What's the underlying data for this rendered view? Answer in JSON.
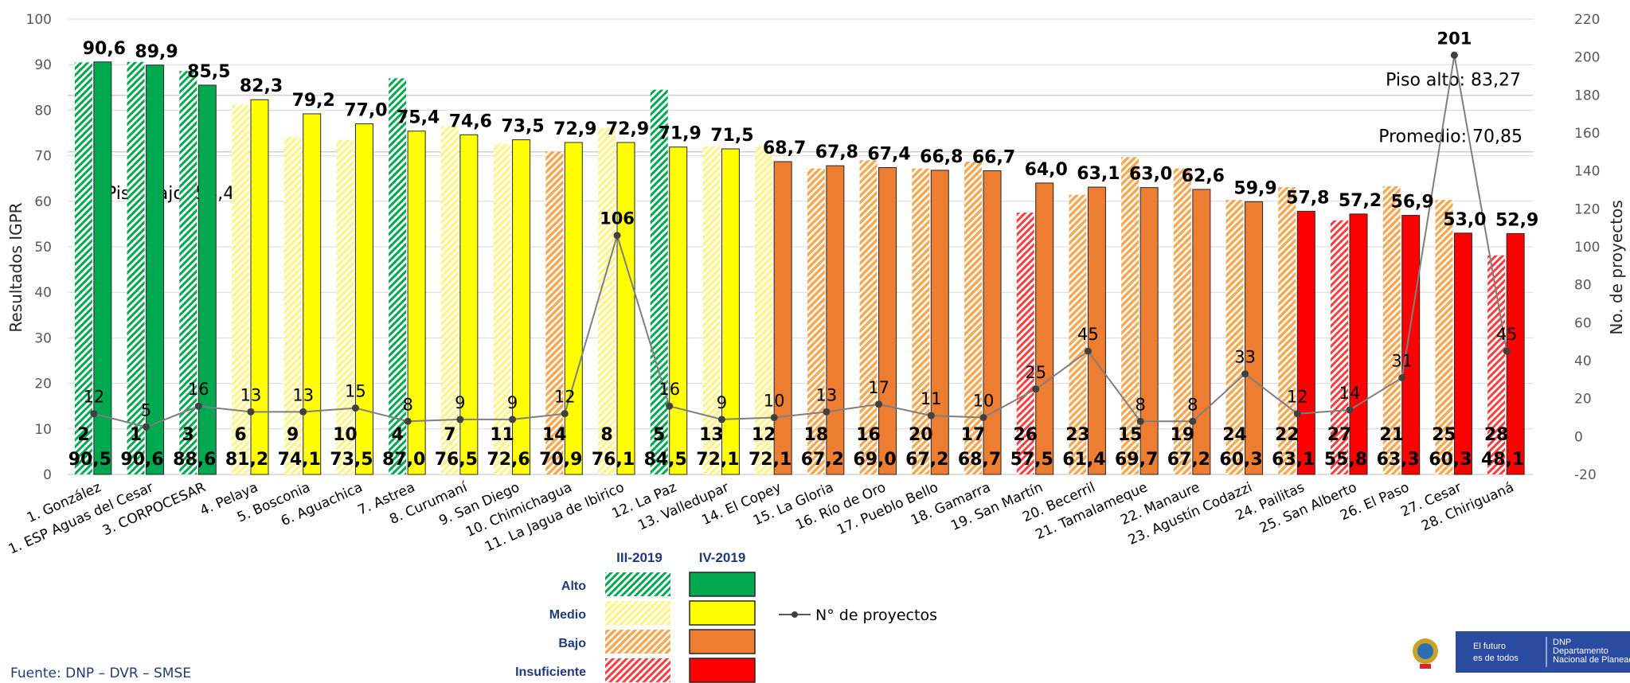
{
  "chart_data": {
    "type": "bar",
    "ylabel": "Resultados IGPR",
    "y2label": "No. de proyectos",
    "ylim": [
      0,
      100
    ],
    "y2lim": [
      -20,
      220
    ],
    "yticks": [
      "0",
      "10",
      "20",
      "30",
      "40",
      "50",
      "60",
      "70",
      "80",
      "90",
      "100"
    ],
    "y2ticks": [
      "-20",
      "0",
      "20",
      "40",
      "60",
      "80",
      "100",
      "120",
      "140",
      "160",
      "180",
      "200",
      "220"
    ],
    "categories": [
      "1. González",
      "1. ESP Aguas del Cesar",
      "3. CORPOCESAR",
      "4. Pelaya",
      "5. Bosconia",
      "6. Aguachica",
      "7. Astrea",
      "8. Curumaní",
      "9. San Diego",
      "10. Chimichagua",
      "11. La Jagua de Ibirico",
      "12. La Paz",
      "13. Valledupar",
      "14. El Copey",
      "15. La Gloria",
      "16. Río de Oro",
      "17. Pueblo Bello",
      "18. Gamarra",
      "19. San Martín",
      "20. Becerril",
      "21. Tamalameque",
      "22. Manaure",
      "23. Agustín Codazzi",
      "24. Pailitas",
      "25. San Alberto",
      "26. El Paso",
      "27. Cesar",
      "28. Chiriguaná"
    ],
    "series": [
      {
        "name": "III-2019",
        "values": [
          90.5,
          90.6,
          88.6,
          81.2,
          74.1,
          73.5,
          87.0,
          76.5,
          72.6,
          70.9,
          76.1,
          84.5,
          72.1,
          72.1,
          67.2,
          69.0,
          67.2,
          68.7,
          57.5,
          61.4,
          69.7,
          67.2,
          60.3,
          63.1,
          55.8,
          63.3,
          60.3,
          48.1
        ],
        "labels": [
          "90,5",
          "90,6",
          "88,6",
          "81,2",
          "74,1",
          "73,5",
          "87,0",
          "76,5",
          "72,6",
          "70,9",
          "76,1",
          "84,5",
          "72,1",
          "72,1",
          "67,2",
          "69,0",
          "67,2",
          "68,7",
          "57,5",
          "61,4",
          "69,7",
          "67,2",
          "60,3",
          "63,1",
          "55,8",
          "63,3",
          "60,3",
          "48,1"
        ],
        "ranks": [
          "2",
          "1",
          "3",
          "6",
          "9",
          "10",
          "4",
          "7",
          "11",
          "14",
          "8",
          "5",
          "13",
          "12",
          "18",
          "16",
          "20",
          "17",
          "26",
          "23",
          "15",
          "19",
          "24",
          "22",
          "27",
          "21",
          "25",
          "28"
        ],
        "levels": [
          "Alto",
          "Alto",
          "Alto",
          "Medio",
          "Medio",
          "Medio",
          "Alto",
          "Medio",
          "Medio",
          "Bajo",
          "Medio",
          "Alto",
          "Medio",
          "Medio",
          "Bajo",
          "Bajo",
          "Bajo",
          "Bajo",
          "Insuficiente",
          "Bajo",
          "Bajo",
          "Bajo",
          "Bajo",
          "Bajo",
          "Insuficiente",
          "Bajo",
          "Bajo",
          "Insuficiente"
        ]
      },
      {
        "name": "IV-2019",
        "values": [
          90.6,
          89.9,
          85.5,
          82.3,
          79.2,
          77.0,
          75.4,
          74.6,
          73.5,
          72.9,
          72.9,
          71.9,
          71.5,
          68.7,
          67.8,
          67.4,
          66.8,
          66.7,
          64.0,
          63.1,
          63.0,
          62.6,
          59.9,
          57.8,
          57.2,
          56.9,
          53.0,
          52.9
        ],
        "labels": [
          "90,6",
          "89,9",
          "85,5",
          "82,3",
          "79,2",
          "77,0",
          "75,4",
          "74,6",
          "73,5",
          "72,9",
          "72,9",
          "71,9",
          "71,5",
          "68,7",
          "67,8",
          "67,4",
          "66,8",
          "66,7",
          "64,0",
          "63,1",
          "63,0",
          "62,6",
          "59,9",
          "57,8",
          "57,2",
          "56,9",
          "53,0",
          "52,9"
        ],
        "levels": [
          "Alto",
          "Alto",
          "Alto",
          "Medio",
          "Medio",
          "Medio",
          "Medio",
          "Medio",
          "Medio",
          "Medio",
          "Medio",
          "Medio",
          "Medio",
          "Bajo",
          "Bajo",
          "Bajo",
          "Bajo",
          "Bajo",
          "Bajo",
          "Bajo",
          "Bajo",
          "Bajo",
          "Bajo",
          "Insuficiente",
          "Insuficiente",
          "Insuficiente",
          "Insuficiente",
          "Insuficiente"
        ]
      },
      {
        "name": "N° de proyectos",
        "type": "line",
        "axis": "secondary",
        "values": [
          12,
          5,
          16,
          13,
          13,
          15,
          8,
          9,
          9,
          12,
          106,
          16,
          9,
          10,
          13,
          17,
          11,
          10,
          25,
          45,
          8,
          8,
          33,
          12,
          14,
          31,
          201,
          45
        ]
      }
    ],
    "reference_lines": [
      {
        "label": "Piso alto: 83,27",
        "value": 83.27
      },
      {
        "label": "Promedio: 70,85",
        "value": 70.85
      },
      {
        "label": "Piso bajo: 58,43",
        "value": 58.43
      }
    ],
    "colors": {
      "Alto": "#00A94F",
      "Medio": "#FFFF00",
      "Bajo": "#ED7D31",
      "Insuficiente": "#FF0000",
      "Alto_light": "#70C35A",
      "Medio_light": "#FFF38A",
      "Bajo_light": "#F5A953",
      "Insuficiente_light": "#FF5A5A",
      "line": "#7F7F7F"
    },
    "legend": {
      "placement": "bottom-center",
      "head_iii": "III-2019",
      "head_iv": "IV-2019",
      "levels": [
        "Alto",
        "Medio",
        "Bajo",
        "Insuficiente"
      ],
      "line_label": "N° de proyectos"
    }
  },
  "source": "Fuente: DNP – DVR – SMSE",
  "logo": {
    "line1": "El futuro",
    "line2": "es de todos",
    "org1": "DNP",
    "org2": "Departamento",
    "org3": "Nacional de Planeación"
  }
}
